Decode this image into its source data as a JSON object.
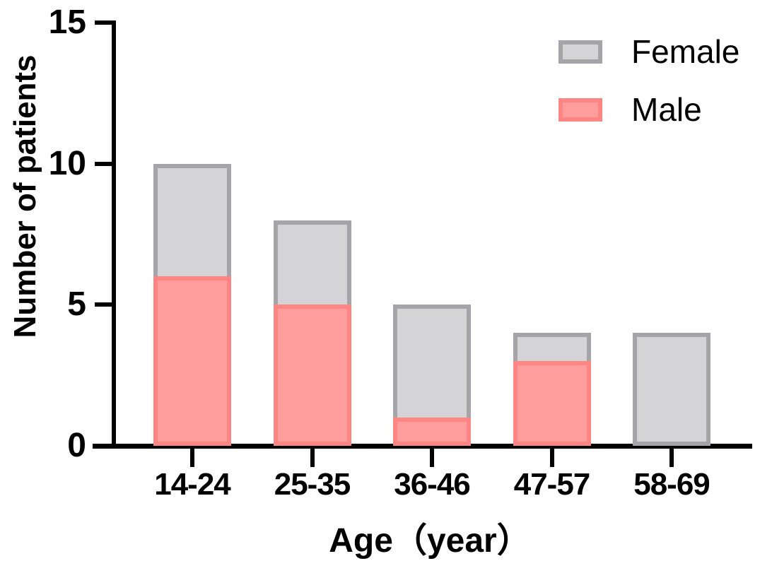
{
  "chart_data": {
    "type": "bar",
    "stacked": true,
    "title": "",
    "xlabel": "Age（year）",
    "ylabel": "Number of patients",
    "categories": [
      "14-24",
      "25-35",
      "36-46",
      "47-57",
      "58-69"
    ],
    "series": [
      {
        "name": "Male",
        "values": [
          6,
          5,
          1,
          3,
          0
        ],
        "fill": "#ff9d9d",
        "border": "#ff8585"
      },
      {
        "name": "Female",
        "values": [
          4,
          3,
          4,
          1,
          4
        ],
        "fill": "#d4d4d6",
        "border": "#a4a4a9"
      }
    ],
    "stack_totals": [
      10,
      8,
      5,
      4,
      4
    ],
    "yticks": [
      0,
      5,
      10,
      15
    ],
    "ylim": [
      0,
      15
    ],
    "grid": false,
    "legend_position": "top-right",
    "legend": [
      {
        "label": "Female",
        "fill": "#d4d4d6",
        "border": "#a4a4a9"
      },
      {
        "label": "Male",
        "fill": "#ff9d9d",
        "border": "#ff8585"
      }
    ],
    "axis_color": "#000000",
    "text_color": "#000000"
  }
}
